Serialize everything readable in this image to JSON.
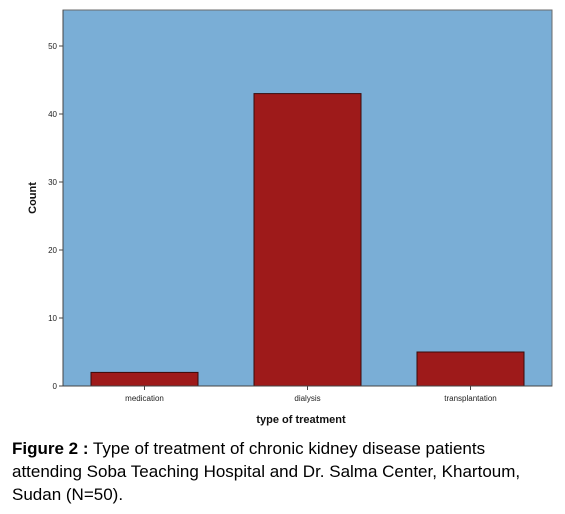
{
  "chart_data": {
    "type": "bar",
    "categories": [
      "medication",
      "dialysis",
      "transplantation"
    ],
    "values": [
      2,
      43,
      5
    ],
    "xlabel": "type of treatment",
    "ylabel": "Count",
    "ylim": [
      0,
      55
    ],
    "yticks": [
      0,
      10,
      20,
      30,
      40,
      50
    ],
    "grid": false,
    "colors": {
      "plot_bg": "#7aaed6",
      "bar_fill": "#9e1a1a",
      "bar_stroke": "#3a0a0a"
    }
  },
  "caption": {
    "lead": "Figure 2 :",
    "text": " Type of treatment of chronic kidney disease patients attending Soba Teaching Hospital and Dr. Salma Center, Khartoum, Sudan (N=50)."
  }
}
